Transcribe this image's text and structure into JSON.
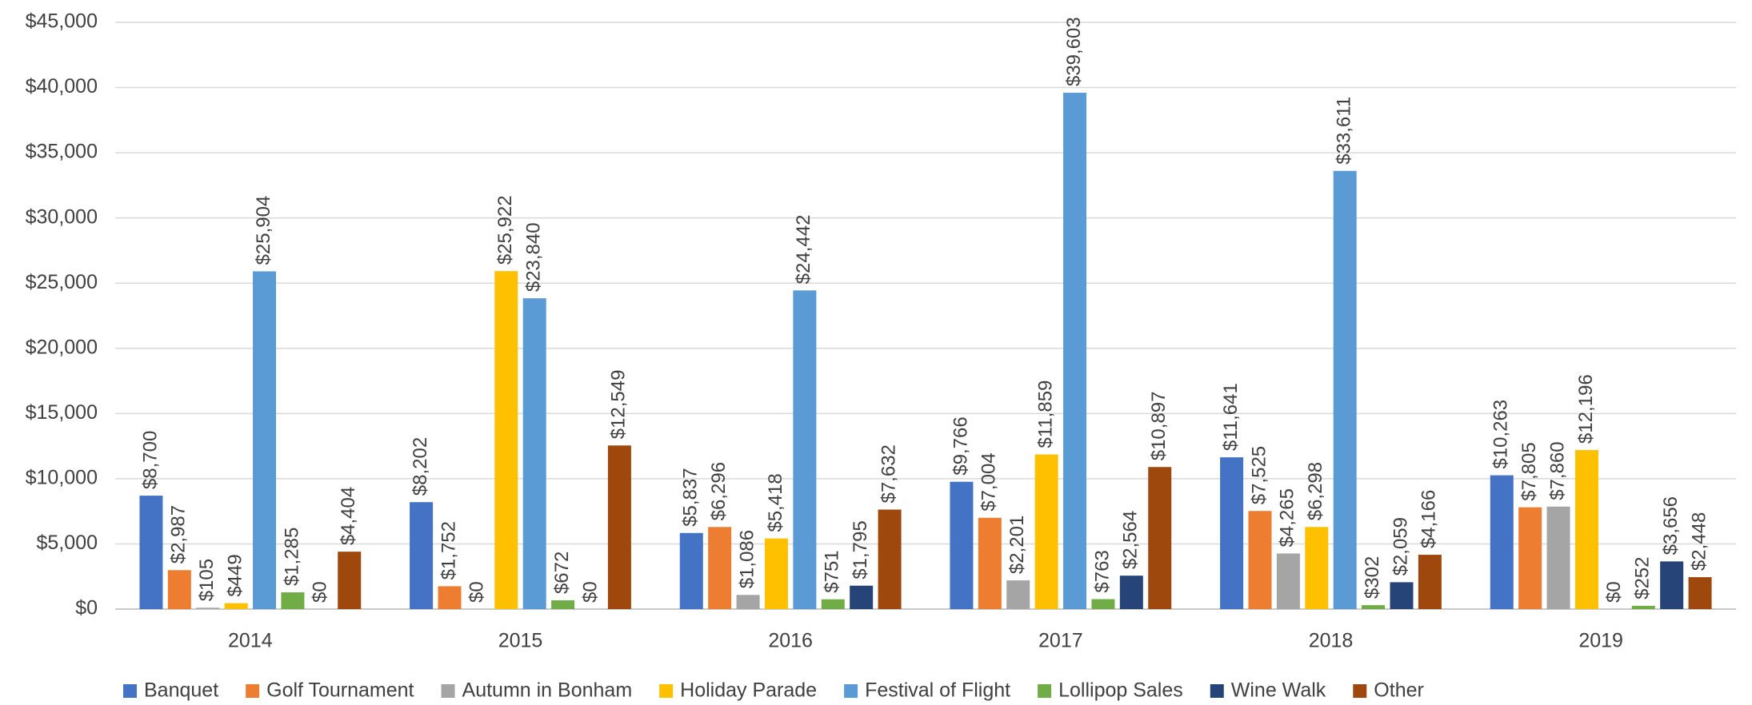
{
  "chart_data": {
    "type": "bar",
    "categories": [
      "2014",
      "2015",
      "2016",
      "2017",
      "2018",
      "2019"
    ],
    "series": [
      {
        "name": "Banquet",
        "color": "#4472c4",
        "values": [
          8700,
          8202,
          5837,
          9766,
          11641,
          10263
        ],
        "value_labels": [
          "$8,700",
          "$8,202",
          "$5,837",
          "$9,766",
          "$11,641",
          "$10,263"
        ]
      },
      {
        "name": "Golf Tournament",
        "color": "#ed7d31",
        "values": [
          2987,
          1752,
          6296,
          7004,
          7525,
          7805
        ],
        "value_labels": [
          "$2,987",
          "$1,752",
          "$6,296",
          "$7,004",
          "$7,525",
          "$7,805"
        ]
      },
      {
        "name": "Autumn in Bonham",
        "color": "#a5a5a5",
        "values": [
          105,
          0,
          1086,
          2201,
          4265,
          7860
        ],
        "value_labels": [
          "$105",
          "$0",
          "$1,086",
          "$2,201",
          "$4,265",
          "$7,860"
        ]
      },
      {
        "name": "Holiday Parade",
        "color": "#ffc000",
        "values": [
          449,
          25922,
          5418,
          11859,
          6298,
          12196
        ],
        "value_labels": [
          "$449",
          "$25,922",
          "$5,418",
          "$11,859",
          "$6,298",
          "$12,196"
        ]
      },
      {
        "name": "Festival of Flight",
        "color": "#5b9bd5",
        "values": [
          25904,
          23840,
          24442,
          39603,
          33611,
          0
        ],
        "value_labels": [
          "$25,904",
          "$23,840",
          "$24,442",
          "$39,603",
          "$33,611",
          "$0"
        ]
      },
      {
        "name": "Lollipop Sales",
        "color": "#70ad47",
        "values": [
          1285,
          672,
          751,
          763,
          302,
          252
        ],
        "value_labels": [
          "$1,285",
          "$672",
          "$751",
          "$763",
          "$302",
          "$252"
        ]
      },
      {
        "name": "Wine Walk",
        "color": "#264478",
        "values": [
          0,
          0,
          1795,
          2564,
          2059,
          3656
        ],
        "value_labels": [
          "$0",
          "$0",
          "$1,795",
          "$2,564",
          "$2,059",
          "$3,656"
        ]
      },
      {
        "name": "Other",
        "color": "#9e480e",
        "values": [
          4404,
          12549,
          7632,
          10897,
          4166,
          2448
        ],
        "value_labels": [
          "$4,404",
          "$12,549",
          "$7,632",
          "$10,897",
          "$4,166",
          "$2,448"
        ]
      }
    ],
    "ylim": [
      0,
      45000
    ],
    "yticks": [
      {
        "value": 0,
        "label": "$0"
      },
      {
        "value": 5000,
        "label": "$5,000"
      },
      {
        "value": 10000,
        "label": "$10,000"
      },
      {
        "value": 15000,
        "label": "$15,000"
      },
      {
        "value": 20000,
        "label": "$20,000"
      },
      {
        "value": 25000,
        "label": "$25,000"
      },
      {
        "value": 30000,
        "label": "$30,000"
      },
      {
        "value": 35000,
        "label": "$35,000"
      },
      {
        "value": 40000,
        "label": "$40,000"
      },
      {
        "value": 45000,
        "label": "$45,000"
      }
    ],
    "grid": true,
    "legend": "bottom"
  }
}
